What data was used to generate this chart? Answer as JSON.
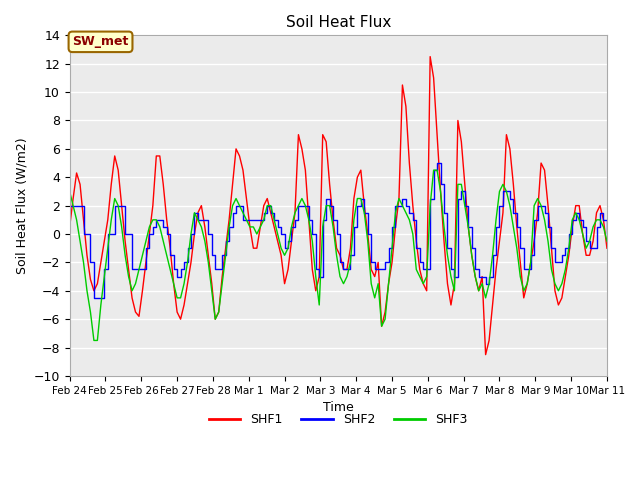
{
  "title": "Soil Heat Flux",
  "ylabel": "Soil Heat Flux (W/m2)",
  "xlabel": "Time",
  "ylim": [
    -10,
    14
  ],
  "fig_bg_color": "#ffffff",
  "plot_bg_color": "#ebebeb",
  "grid_color": "#ffffff",
  "legend_label": "SW_met",
  "legend_bg": "#ffffcc",
  "legend_border": "#996600",
  "series_colors": [
    "#ff0000",
    "#0000ff",
    "#00cc00"
  ],
  "series_labels": [
    "SHF1",
    "SHF2",
    "SHF3"
  ],
  "x_tick_labels": [
    "Feb 24",
    "Feb 25",
    "Feb 26",
    "Feb 27",
    "Feb 28",
    "Mar 1",
    "Mar 2",
    "Mar 3",
    "Mar 4",
    "Mar 5",
    "Mar 6",
    "Mar 7",
    "Mar 8",
    "Mar 9",
    "Mar 10",
    "Mar 11"
  ],
  "shf1": [
    0.5,
    2.5,
    4.3,
    3.5,
    1.0,
    -1.5,
    -3.2,
    -4.0,
    -3.5,
    -2.0,
    -0.5,
    1.0,
    3.5,
    5.5,
    4.5,
    2.0,
    -0.5,
    -2.5,
    -4.5,
    -5.5,
    -5.8,
    -4.0,
    -2.0,
    0.0,
    2.0,
    5.5,
    5.5,
    3.5,
    1.0,
    -1.0,
    -3.5,
    -5.5,
    -6.0,
    -5.0,
    -3.5,
    -2.0,
    0.0,
    1.5,
    2.0,
    0.5,
    -1.5,
    -3.5,
    -6.0,
    -5.5,
    -3.0,
    -1.0,
    1.0,
    3.5,
    6.0,
    5.5,
    4.5,
    2.5,
    0.5,
    -1.0,
    -1.0,
    0.5,
    2.0,
    2.5,
    1.5,
    0.5,
    -0.5,
    -1.5,
    -3.5,
    -2.5,
    -0.5,
    1.5,
    7.0,
    6.0,
    4.5,
    1.0,
    -2.5,
    -4.0,
    -3.0,
    7.0,
    6.5,
    3.5,
    1.0,
    -1.0,
    -1.5,
    -2.5,
    -2.5,
    -1.0,
    2.5,
    4.0,
    4.5,
    2.0,
    0.0,
    -2.5,
    -3.0,
    -2.0,
    -6.5,
    -5.5,
    -3.5,
    -2.0,
    0.5,
    2.5,
    10.5,
    9.0,
    5.0,
    2.0,
    -0.5,
    -2.5,
    -3.5,
    -4.0,
    12.5,
    11.0,
    7.0,
    3.0,
    -0.5,
    -3.5,
    -5.0,
    -3.5,
    8.0,
    6.5,
    3.5,
    0.5,
    -1.5,
    -3.0,
    -4.0,
    -3.0,
    -8.5,
    -7.5,
    -5.0,
    -2.5,
    -0.5,
    1.5,
    7.0,
    6.0,
    3.5,
    0.5,
    -2.0,
    -4.5,
    -3.5,
    -2.0,
    -0.5,
    1.5,
    5.0,
    4.5,
    2.0,
    -1.0,
    -4.0,
    -5.0,
    -4.5,
    -3.0,
    -1.5,
    0.5,
    2.0,
    2.0,
    0.0,
    -1.5,
    -1.5,
    -0.5,
    1.5,
    2.0,
    1.0,
    -1.0
  ],
  "shf2": [
    2.0,
    2.0,
    2.0,
    2.0,
    0.0,
    0.0,
    -2.0,
    -4.5,
    -4.5,
    -4.5,
    -2.5,
    0.0,
    0.0,
    2.0,
    2.0,
    2.0,
    0.0,
    0.0,
    -2.5,
    -2.5,
    -2.5,
    -2.5,
    -1.0,
    0.0,
    0.5,
    1.0,
    1.0,
    0.5,
    0.0,
    -1.5,
    -2.5,
    -3.0,
    -2.5,
    -2.0,
    -1.0,
    0.0,
    1.5,
    1.0,
    1.0,
    1.0,
    0.0,
    -1.5,
    -2.5,
    -2.5,
    -1.5,
    -0.5,
    0.5,
    1.5,
    2.0,
    2.0,
    1.0,
    1.0,
    1.0,
    1.0,
    1.0,
    1.0,
    1.5,
    2.0,
    1.5,
    1.0,
    0.5,
    0.0,
    -1.0,
    -0.5,
    0.5,
    1.0,
    2.0,
    2.0,
    2.0,
    1.0,
    0.0,
    -2.5,
    -3.0,
    1.0,
    2.5,
    2.0,
    1.0,
    0.0,
    -2.0,
    -2.5,
    -2.5,
    -1.5,
    0.5,
    2.0,
    2.5,
    1.5,
    0.0,
    -2.0,
    -2.5,
    -2.5,
    -2.5,
    -2.0,
    -1.0,
    0.5,
    2.0,
    2.0,
    2.5,
    2.0,
    1.5,
    1.0,
    -1.0,
    -2.0,
    -2.5,
    -2.5,
    2.5,
    4.5,
    5.0,
    3.5,
    1.5,
    -1.0,
    -2.5,
    -3.0,
    2.5,
    3.0,
    2.0,
    0.5,
    -1.0,
    -2.5,
    -3.0,
    -3.0,
    -3.5,
    -3.0,
    -1.5,
    0.5,
    2.0,
    3.0,
    3.0,
    2.5,
    1.5,
    0.5,
    -1.0,
    -2.5,
    -2.5,
    -1.5,
    1.0,
    2.0,
    2.0,
    1.5,
    0.5,
    -1.0,
    -2.0,
    -2.0,
    -1.5,
    -1.0,
    0.0,
    1.0,
    1.5,
    1.0,
    0.5,
    -0.5,
    -1.0,
    -1.0,
    0.5,
    1.5,
    1.0,
    0.0
  ],
  "shf3": [
    3.0,
    2.0,
    1.0,
    -0.5,
    -2.0,
    -4.0,
    -5.5,
    -7.5,
    -7.5,
    -5.0,
    -3.0,
    -1.0,
    1.0,
    2.5,
    2.0,
    0.5,
    -1.5,
    -3.0,
    -4.0,
    -3.5,
    -2.5,
    -1.5,
    -0.5,
    0.5,
    1.0,
    1.0,
    0.5,
    -0.5,
    -1.5,
    -2.5,
    -3.5,
    -4.5,
    -4.5,
    -3.5,
    -2.0,
    0.0,
    1.5,
    1.0,
    0.5,
    -0.5,
    -2.0,
    -4.0,
    -6.0,
    -5.5,
    -3.5,
    -1.5,
    0.5,
    2.0,
    2.5,
    2.0,
    1.5,
    1.0,
    0.5,
    0.5,
    0.0,
    0.5,
    1.0,
    2.0,
    2.0,
    1.0,
    0.0,
    -1.0,
    -1.5,
    -1.0,
    0.5,
    1.5,
    2.0,
    2.5,
    2.0,
    1.0,
    -0.5,
    -3.0,
    -5.0,
    0.5,
    2.0,
    2.0,
    0.5,
    -1.5,
    -3.0,
    -3.5,
    -3.0,
    -2.0,
    1.0,
    2.5,
    2.5,
    1.5,
    -0.5,
    -3.5,
    -4.5,
    -3.5,
    -6.5,
    -6.0,
    -3.5,
    -1.0,
    1.5,
    2.5,
    2.0,
    1.5,
    1.0,
    0.0,
    -2.5,
    -3.0,
    -3.5,
    -3.0,
    2.0,
    4.5,
    4.5,
    3.0,
    0.5,
    -1.5,
    -3.0,
    -4.0,
    3.5,
    3.5,
    2.0,
    0.5,
    -1.5,
    -3.0,
    -4.0,
    -3.5,
    -4.5,
    -3.5,
    -1.5,
    1.0,
    3.0,
    3.5,
    3.0,
    2.0,
    0.5,
    -1.0,
    -3.0,
    -4.0,
    -3.5,
    -2.0,
    2.0,
    2.5,
    2.0,
    1.0,
    -0.5,
    -2.5,
    -3.5,
    -4.0,
    -3.5,
    -2.5,
    -1.0,
    1.0,
    1.5,
    1.0,
    0.0,
    -1.0,
    -0.5,
    0.5,
    1.0,
    1.0,
    0.5,
    -0.5
  ]
}
